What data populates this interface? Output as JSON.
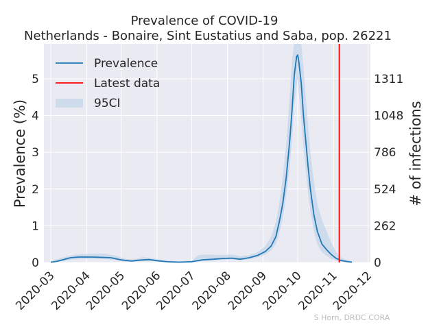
{
  "chart_data": {
    "type": "line",
    "title": "Prevalence of COVID-19",
    "subtitle": "Netherlands - Bonaire, Sint Eustatius and Saba, pop. 26221",
    "ylabel": "Prevalence (%)",
    "y2label": "# of infections",
    "credit": "S Horn, DRDC CORA",
    "grid": true,
    "legend_position": "top-left",
    "ylim": [
      0,
      5.95
    ],
    "xlim": [
      "2020-02-24",
      "2020-12-03"
    ],
    "x_ticks": [
      "2020-03",
      "2020-04",
      "2020-05",
      "2020-06",
      "2020-07",
      "2020-08",
      "2020-09",
      "2020-10",
      "2020-11",
      "2020-12"
    ],
    "y_ticks": [
      "0",
      "1",
      "2",
      "3",
      "4",
      "5"
    ],
    "y2_ticks": [
      "0",
      "262",
      "524",
      "786",
      "1048",
      "1311"
    ],
    "legend": [
      {
        "label": "Prevalence",
        "kind": "line",
        "color": "#1f77b4"
      },
      {
        "label": "Latest data",
        "kind": "line",
        "color": "#ff0000"
      },
      {
        "label": "95CI",
        "kind": "band",
        "color": "#cfdcec"
      }
    ],
    "latest_data_date": "2020-11-06",
    "series": [
      {
        "name": "Prevalence",
        "color": "#1f77b4",
        "points": [
          [
            "2020-03-01",
            0.01
          ],
          [
            "2020-03-06",
            0.03
          ],
          [
            "2020-03-12",
            0.08
          ],
          [
            "2020-03-18",
            0.13
          ],
          [
            "2020-03-25",
            0.15
          ],
          [
            "2020-04-05",
            0.15
          ],
          [
            "2020-04-15",
            0.14
          ],
          [
            "2020-04-22",
            0.13
          ],
          [
            "2020-05-01",
            0.07
          ],
          [
            "2020-05-10",
            0.04
          ],
          [
            "2020-05-15",
            0.06
          ],
          [
            "2020-05-25",
            0.08
          ],
          [
            "2020-06-01",
            0.05
          ],
          [
            "2020-06-10",
            0.02
          ],
          [
            "2020-06-20",
            0.01
          ],
          [
            "2020-07-01",
            0.02
          ],
          [
            "2020-07-10",
            0.07
          ],
          [
            "2020-07-20",
            0.09
          ],
          [
            "2020-07-28",
            0.11
          ],
          [
            "2020-08-05",
            0.12
          ],
          [
            "2020-08-12",
            0.09
          ],
          [
            "2020-08-20",
            0.13
          ],
          [
            "2020-08-27",
            0.19
          ],
          [
            "2020-09-03",
            0.3
          ],
          [
            "2020-09-08",
            0.45
          ],
          [
            "2020-09-12",
            0.7
          ],
          [
            "2020-09-15",
            1.1
          ],
          [
            "2020-09-18",
            1.6
          ],
          [
            "2020-09-21",
            2.3
          ],
          [
            "2020-09-24",
            3.3
          ],
          [
            "2020-09-26",
            4.1
          ],
          [
            "2020-09-28",
            5.1
          ],
          [
            "2020-09-30",
            5.6
          ],
          [
            "2020-10-01",
            5.65
          ],
          [
            "2020-10-02",
            5.45
          ],
          [
            "2020-10-04",
            4.9
          ],
          [
            "2020-10-06",
            4.0
          ],
          [
            "2020-10-08",
            3.3
          ],
          [
            "2020-10-10",
            2.6
          ],
          [
            "2020-10-12",
            2.0
          ],
          [
            "2020-10-15",
            1.3
          ],
          [
            "2020-10-18",
            0.85
          ],
          [
            "2020-10-22",
            0.5
          ],
          [
            "2020-10-26",
            0.35
          ],
          [
            "2020-10-30",
            0.22
          ],
          [
            "2020-11-03",
            0.12
          ],
          [
            "2020-11-07",
            0.06
          ],
          [
            "2020-11-12",
            0.03
          ],
          [
            "2020-11-17",
            0.01
          ]
        ]
      }
    ],
    "ci_band": {
      "name": "95CI",
      "points": [
        [
          "2020-03-01",
          0.0,
          0.03
        ],
        [
          "2020-03-10",
          0.03,
          0.13
        ],
        [
          "2020-03-20",
          0.08,
          0.2
        ],
        [
          "2020-03-27",
          0.1,
          0.23
        ],
        [
          "2020-04-08",
          0.1,
          0.24
        ],
        [
          "2020-04-18",
          0.09,
          0.24
        ],
        [
          "2020-04-25",
          0.07,
          0.19
        ],
        [
          "2020-05-05",
          0.02,
          0.1
        ],
        [
          "2020-05-12",
          0.02,
          0.09
        ],
        [
          "2020-05-20",
          0.04,
          0.15
        ],
        [
          "2020-05-28",
          0.04,
          0.12
        ],
        [
          "2020-06-08",
          0.01,
          0.05
        ],
        [
          "2020-06-20",
          0.0,
          0.03
        ],
        [
          "2020-07-01",
          0.0,
          0.05
        ],
        [
          "2020-07-07",
          0.03,
          0.2
        ],
        [
          "2020-07-15",
          0.05,
          0.22
        ],
        [
          "2020-07-25",
          0.07,
          0.2
        ],
        [
          "2020-08-05",
          0.08,
          0.22
        ],
        [
          "2020-08-12",
          0.06,
          0.17
        ],
        [
          "2020-08-20",
          0.09,
          0.2
        ],
        [
          "2020-08-27",
          0.14,
          0.28
        ],
        [
          "2020-09-03",
          0.22,
          0.45
        ],
        [
          "2020-09-08",
          0.33,
          0.7
        ],
        [
          "2020-09-12",
          0.5,
          1.1
        ],
        [
          "2020-09-15",
          0.8,
          1.6
        ],
        [
          "2020-09-18",
          1.2,
          2.3
        ],
        [
          "2020-09-21",
          1.8,
          3.2
        ],
        [
          "2020-09-24",
          2.6,
          4.5
        ],
        [
          "2020-09-26",
          3.3,
          5.5
        ],
        [
          "2020-09-28",
          4.3,
          5.95
        ],
        [
          "2020-10-01",
          5.0,
          5.95
        ],
        [
          "2020-10-04",
          3.9,
          5.95
        ],
        [
          "2020-10-06",
          3.1,
          5.3
        ],
        [
          "2020-10-08",
          2.5,
          4.5
        ],
        [
          "2020-10-10",
          1.9,
          3.7
        ],
        [
          "2020-10-12",
          1.4,
          3.0
        ],
        [
          "2020-10-15",
          0.85,
          2.2
        ],
        [
          "2020-10-18",
          0.5,
          1.6
        ],
        [
          "2020-10-22",
          0.28,
          1.15
        ],
        [
          "2020-10-26",
          0.18,
          0.85
        ],
        [
          "2020-10-30",
          0.1,
          0.55
        ],
        [
          "2020-11-03",
          0.05,
          0.3
        ],
        [
          "2020-11-07",
          0.02,
          0.15
        ],
        [
          "2020-11-12",
          0.0,
          0.07
        ],
        [
          "2020-11-17",
          0.0,
          0.03
        ]
      ]
    }
  }
}
